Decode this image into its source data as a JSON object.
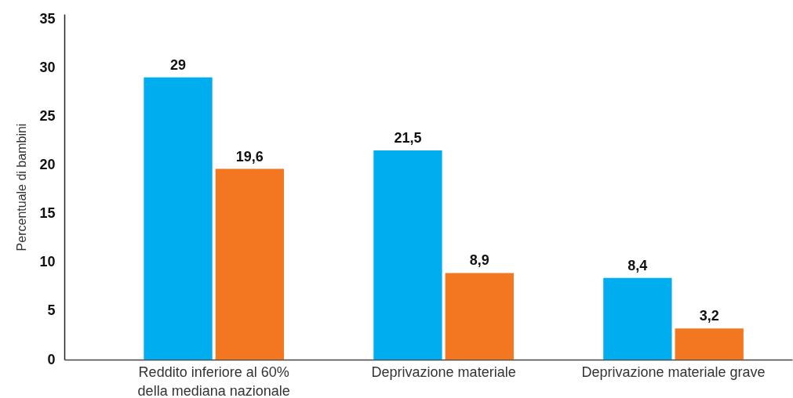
{
  "chart_data": {
    "type": "bar",
    "ylabel": "Percentuale di bambini",
    "categories": [
      "Reddito inferiore al 60% della mediana nazionale",
      "Deprivazione materiale",
      "Deprivazione materiale grave"
    ],
    "series": [
      {
        "color": "#00adef",
        "values": [
          29,
          21.5,
          8.4
        ],
        "value_labels": [
          "29",
          "21,5",
          "8,4"
        ]
      },
      {
        "color": "#f37721",
        "values": [
          19.6,
          8.9,
          3.2
        ],
        "value_labels": [
          "19,6",
          "8,9",
          "3,2"
        ]
      }
    ],
    "ylim": [
      0,
      35.5
    ],
    "yticks": [
      0,
      5,
      10,
      15,
      20,
      25,
      30,
      35
    ],
    "grid": false
  }
}
